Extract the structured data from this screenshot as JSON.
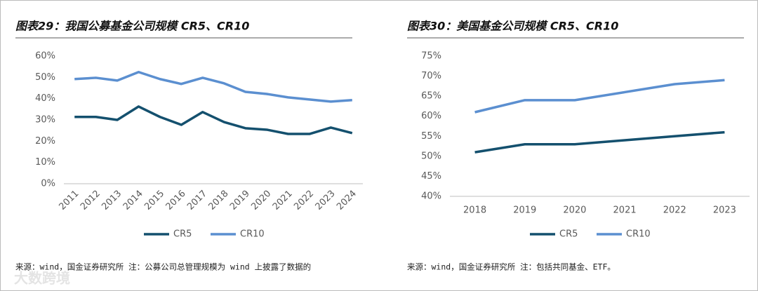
{
  "chart_data": [
    {
      "type": "line",
      "title": "图表29：我国公募基金公司规模 CR5、CR10",
      "categories": [
        "2011",
        "2012",
        "2013",
        "2014",
        "2015",
        "2016",
        "2017",
        "2018",
        "2019",
        "2020",
        "2021",
        "2022",
        "2023",
        "2024"
      ],
      "series": [
        {
          "name": "CR5",
          "color": "#14506e",
          "values": [
            31.4,
            31.4,
            30.0,
            36.3,
            31.4,
            27.7,
            33.7,
            29.0,
            26.1,
            25.4,
            23.4,
            23.4,
            26.4,
            23.8
          ]
        },
        {
          "name": "CR10",
          "color": "#5b8fd0",
          "values": [
            49.2,
            49.8,
            48.5,
            52.5,
            49.2,
            46.9,
            49.8,
            47.2,
            43.2,
            42.2,
            40.6,
            39.6,
            38.6,
            39.3
          ]
        }
      ],
      "ylim": [
        0,
        60
      ],
      "yticks": [
        {
          "value": 0,
          "label": "0%"
        },
        {
          "value": 10,
          "label": "10%"
        },
        {
          "value": 20,
          "label": "20%"
        },
        {
          "value": 30,
          "label": "30%"
        },
        {
          "value": 40,
          "label": "40%"
        },
        {
          "value": 50,
          "label": "50%"
        },
        {
          "value": 60,
          "label": "60%"
        }
      ],
      "rotate_x_labels": true,
      "note": "来源：wind，国金证券研究所 注：公募公司总管理规模为 wind 上披露了数据的"
    },
    {
      "type": "line",
      "title": "图表30：美国基金公司规模 CR5、CR10",
      "categories": [
        "2018",
        "2019",
        "2020",
        "2021",
        "2022",
        "2023"
      ],
      "series": [
        {
          "name": "CR5",
          "color": "#14506e",
          "values": [
            51,
            53,
            53,
            54,
            55,
            56
          ]
        },
        {
          "name": "CR10",
          "color": "#5b8fd0",
          "values": [
            61,
            64,
            64,
            66,
            68,
            69
          ]
        }
      ],
      "ylim": [
        40,
        75
      ],
      "yticks": [
        {
          "value": 40,
          "label": "40%"
        },
        {
          "value": 45,
          "label": "45%"
        },
        {
          "value": 50,
          "label": "50%"
        },
        {
          "value": 55,
          "label": "55%"
        },
        {
          "value": 60,
          "label": "60%"
        },
        {
          "value": 65,
          "label": "65%"
        },
        {
          "value": 70,
          "label": "70%"
        },
        {
          "value": 75,
          "label": "75%"
        }
      ],
      "rotate_x_labels": false,
      "note": "来源：wind，国金证券研究所 注：包括共同基金、ETF。"
    }
  ],
  "watermark": "大数跨境"
}
